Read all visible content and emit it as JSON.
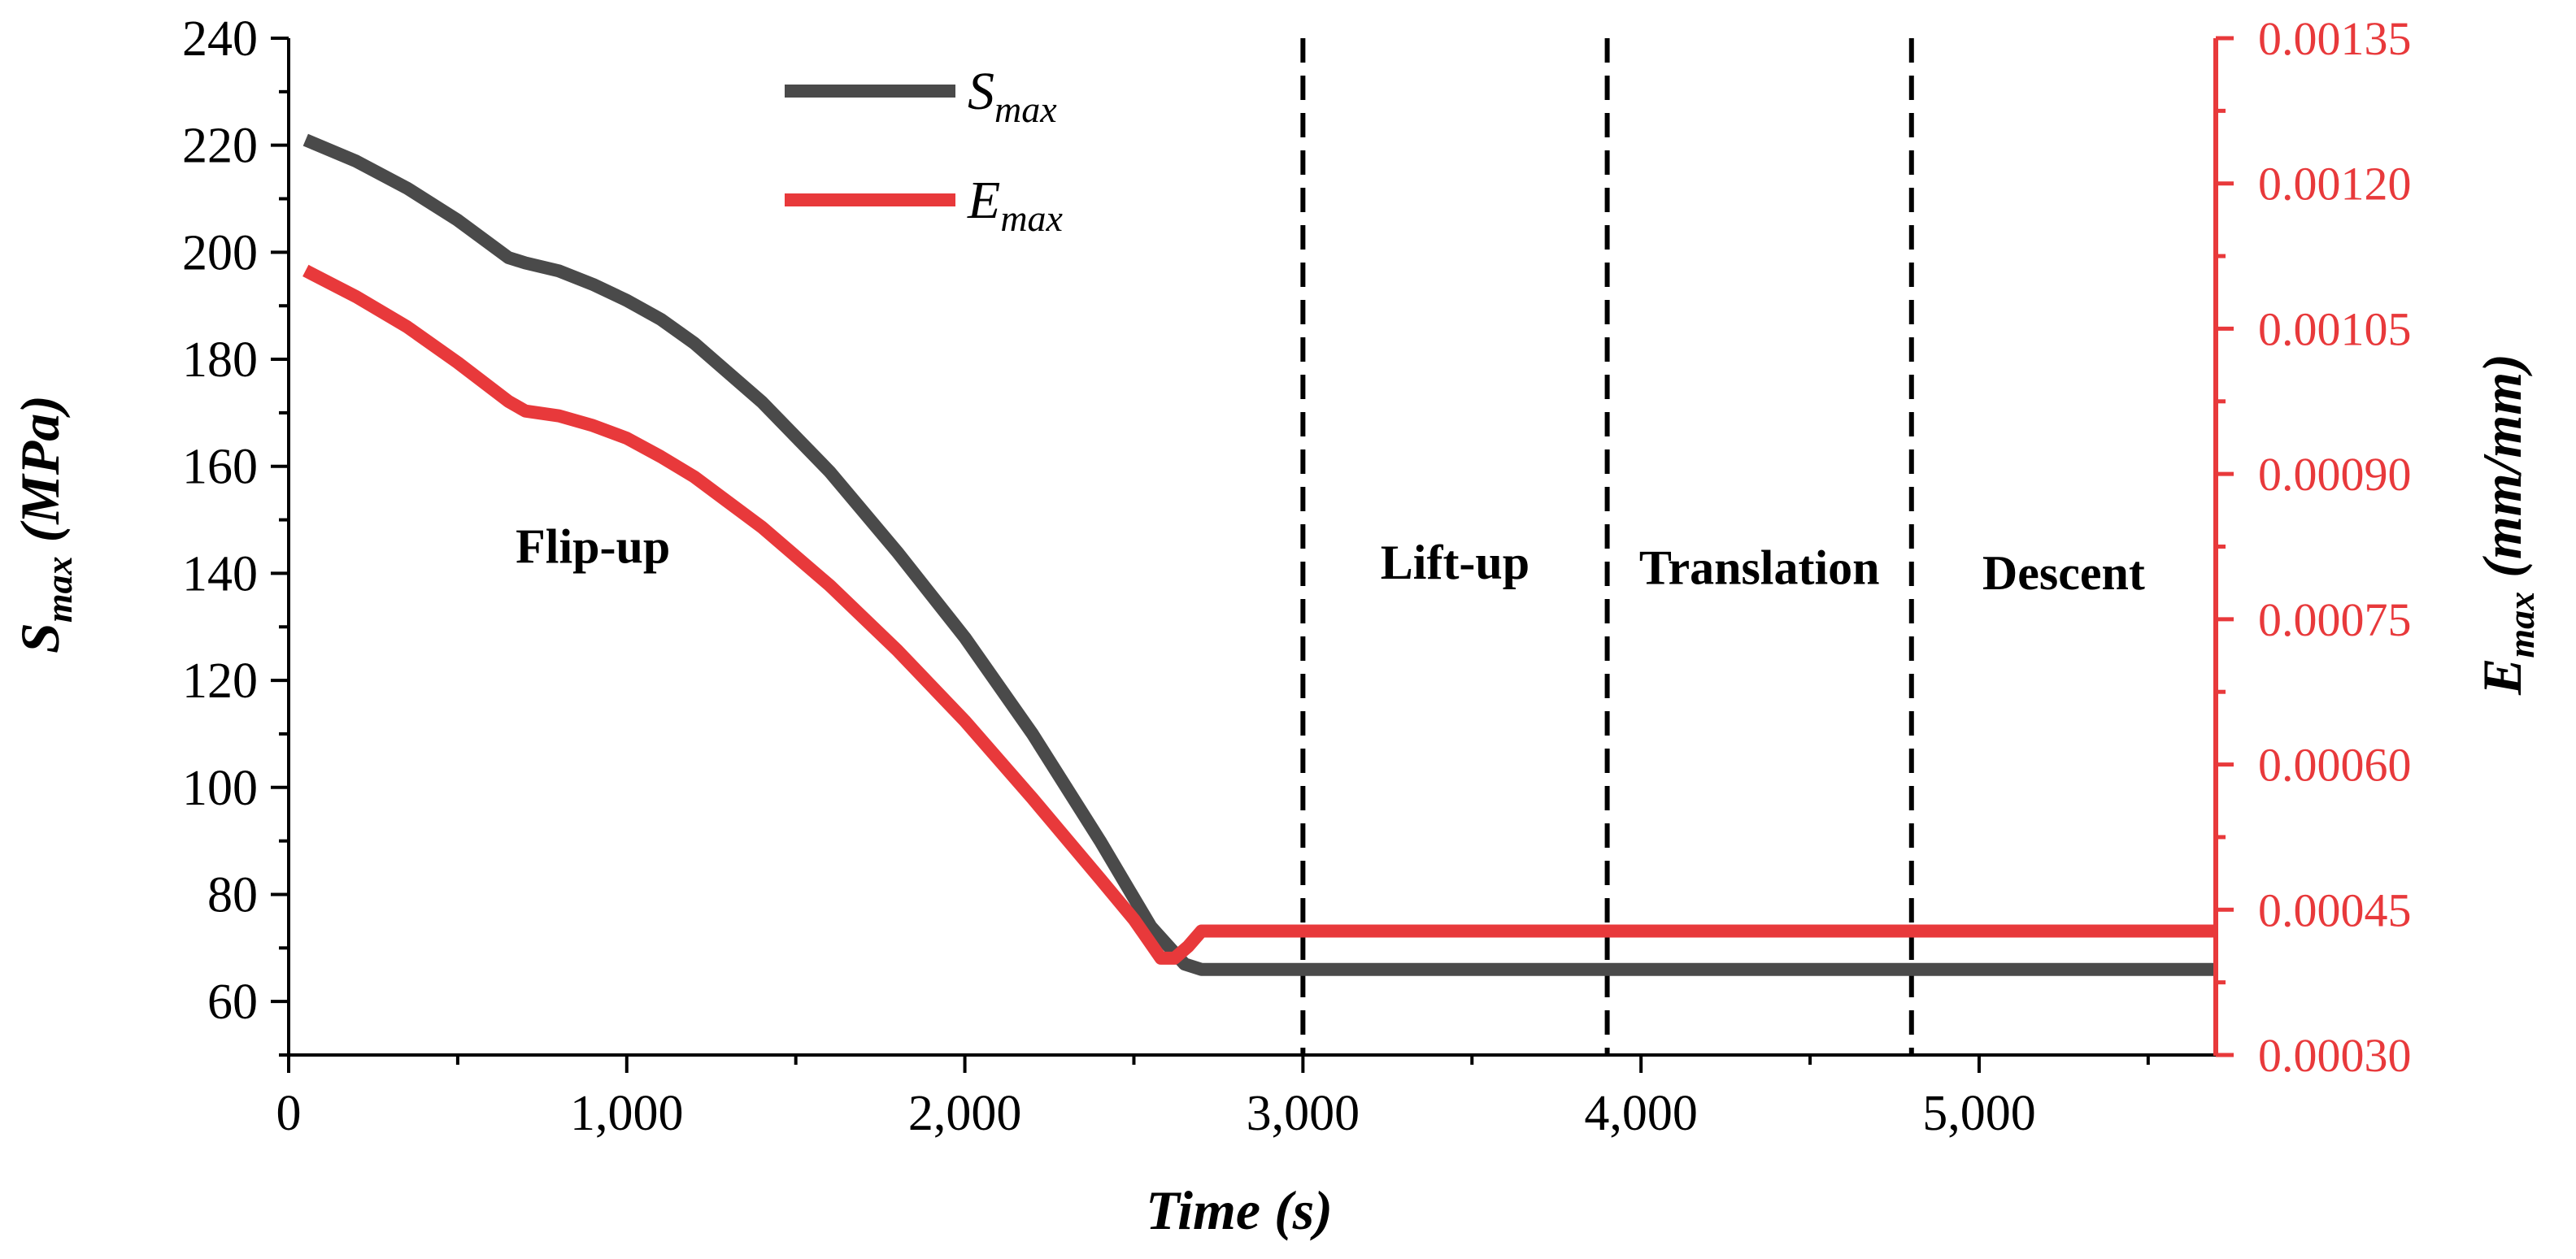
{
  "chart_data": {
    "type": "line",
    "title": "",
    "xlabel": "Time (s)",
    "ylabel_left": {
      "main": "S",
      "sub": "max",
      "unit": " (MPa)"
    },
    "ylabel_right": {
      "main": "E",
      "sub": "max",
      "unit": " (mm/mm)"
    },
    "xlim": [
      0,
      5700
    ],
    "ylim_left": [
      50,
      240
    ],
    "ylim_right": [
      0.0003,
      0.00135
    ],
    "x_ticks": [
      {
        "value": 0,
        "label": "0"
      },
      {
        "value": 1000,
        "label": "1,000"
      },
      {
        "value": 2000,
        "label": "2,000"
      },
      {
        "value": 3000,
        "label": "3,000"
      },
      {
        "value": 4000,
        "label": "4,000"
      },
      {
        "value": 5000,
        "label": "5,000"
      }
    ],
    "y_left_ticks": [
      {
        "value": 60,
        "label": "60"
      },
      {
        "value": 80,
        "label": "80"
      },
      {
        "value": 100,
        "label": "100"
      },
      {
        "value": 120,
        "label": "120"
      },
      {
        "value": 140,
        "label": "140"
      },
      {
        "value": 160,
        "label": "160"
      },
      {
        "value": 180,
        "label": "180"
      },
      {
        "value": 200,
        "label": "200"
      },
      {
        "value": 220,
        "label": "220"
      },
      {
        "value": 240,
        "label": "240"
      }
    ],
    "y_right_ticks": [
      {
        "value": 0.0003,
        "label": "0.00030"
      },
      {
        "value": 0.00045,
        "label": "0.00045"
      },
      {
        "value": 0.0006,
        "label": "0.00060"
      },
      {
        "value": 0.00075,
        "label": "0.00075"
      },
      {
        "value": 0.0009,
        "label": "0.00090"
      },
      {
        "value": 0.00105,
        "label": "0.00105"
      },
      {
        "value": 0.0012,
        "label": "0.00120"
      },
      {
        "value": 0.00135,
        "label": "0.00135"
      }
    ],
    "series": [
      {
        "name": "S_max",
        "legend_main": "S",
        "legend_sub": "max",
        "axis": "left",
        "color": "#4a4a4a",
        "x": [
          50,
          200,
          350,
          500,
          650,
          700,
          800,
          900,
          1000,
          1100,
          1200,
          1400,
          1600,
          1800,
          2000,
          2200,
          2400,
          2550,
          2650,
          2700,
          3000,
          4000,
          5000,
          5700
        ],
        "y": [
          221,
          217,
          212,
          206,
          199,
          198,
          196.5,
          194,
          191,
          187.5,
          183,
          172,
          159,
          144,
          128,
          110,
          90,
          74,
          67,
          66,
          66,
          66,
          66,
          66
        ]
      },
      {
        "name": "E_max",
        "legend_main": "E",
        "legend_sub": "max",
        "axis": "right",
        "color": "#e8393b",
        "x": [
          50,
          200,
          350,
          500,
          650,
          700,
          800,
          900,
          1000,
          1100,
          1200,
          1400,
          1600,
          1800,
          2000,
          2200,
          2400,
          2500,
          2580,
          2620,
          2660,
          2700,
          3000,
          4000,
          5000,
          5700
        ],
        "y": [
          0.00111,
          0.001083,
          0.001052,
          0.001015,
          0.000975,
          0.000965,
          0.00096,
          0.00095,
          0.000937,
          0.000918,
          0.000897,
          0.000845,
          0.000785,
          0.000718,
          0.000645,
          0.000565,
          0.000482,
          0.00044,
          0.0004,
          0.0004,
          0.000412,
          0.000428,
          0.000428,
          0.000428,
          0.000428,
          0.000428
        ]
      }
    ],
    "phase_dividers": [
      3000,
      3900,
      4800
    ],
    "phases": [
      {
        "name": "Flip-up",
        "x": 900,
        "y": 142
      },
      {
        "name": "Lift-up",
        "x": 3450,
        "y": 139
      },
      {
        "name": "Translation",
        "x": 4350,
        "y": 138
      },
      {
        "name": "Descent",
        "x": 5250,
        "y": 137
      }
    ],
    "legend_position": "top-left",
    "grid": false
  }
}
